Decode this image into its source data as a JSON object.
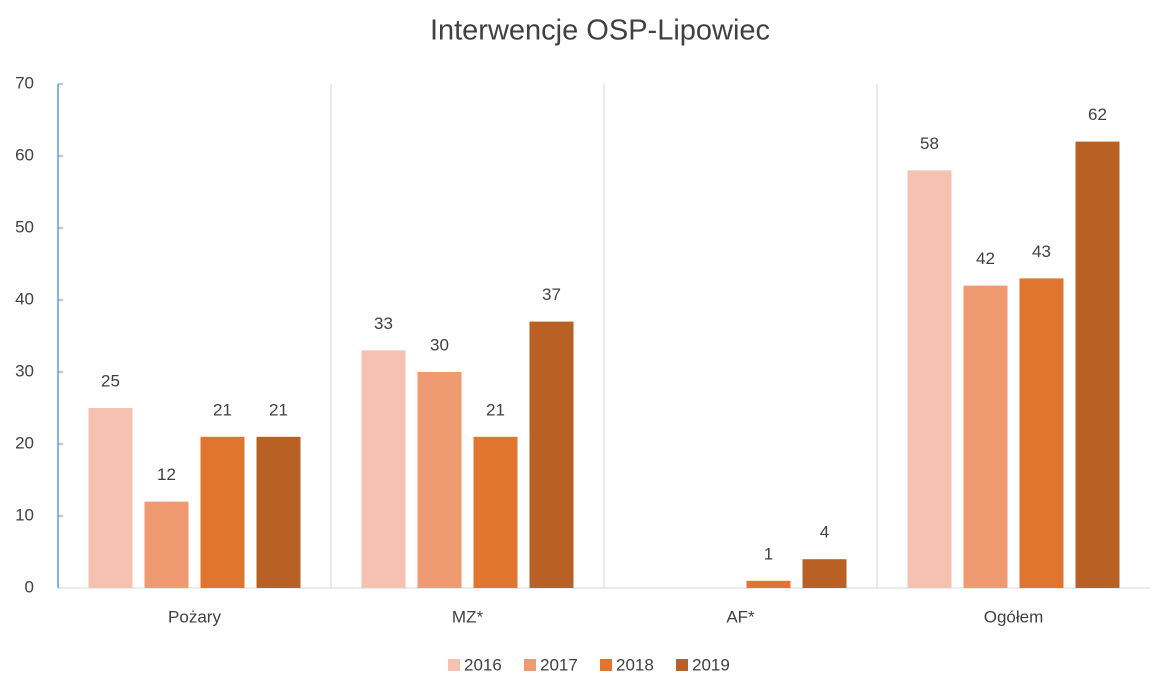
{
  "chart_data": {
    "type": "bar",
    "title": "Interwencje OSP-Lipowiec",
    "categories": [
      "Pożary",
      "MZ*",
      "AF*",
      "Ogółem"
    ],
    "series": [
      {
        "name": "2016",
        "color": "#f5c1b0",
        "values": [
          25,
          33,
          null,
          58
        ]
      },
      {
        "name": "2017",
        "color": "#f09a72",
        "values": [
          12,
          30,
          null,
          42
        ]
      },
      {
        "name": "2018",
        "color": "#e07530",
        "values": [
          21,
          21,
          1,
          43
        ]
      },
      {
        "name": "2019",
        "color": "#b96024",
        "values": [
          21,
          37,
          4,
          62
        ]
      }
    ],
    "ylim": [
      0,
      70
    ],
    "yticks": [
      0,
      10,
      20,
      30,
      40,
      50,
      60,
      70
    ],
    "legend": "bottom"
  }
}
